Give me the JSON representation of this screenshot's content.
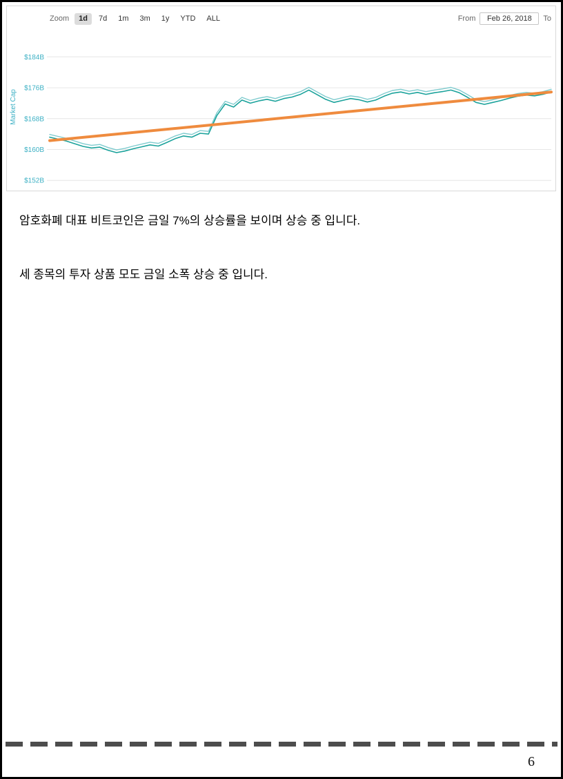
{
  "page": {
    "number": "6"
  },
  "chart": {
    "toolbar": {
      "zoom_label": "Zoom",
      "ranges": [
        {
          "label": "1d",
          "selected": true
        },
        {
          "label": "7d",
          "selected": false
        },
        {
          "label": "1m",
          "selected": false
        },
        {
          "label": "3m",
          "selected": false
        },
        {
          "label": "1y",
          "selected": false
        },
        {
          "label": "YTD",
          "selected": false
        },
        {
          "label": "ALL",
          "selected": false
        }
      ],
      "from_label": "From",
      "from_value": "Feb 26, 2018",
      "to_label": "To"
    },
    "y_axis_title": "Market Cap"
  },
  "chart_data": {
    "type": "line",
    "title": "",
    "xlabel": "",
    "ylabel": "Market Cap",
    "unit": "USD billions",
    "range_selected": "1d",
    "from_date": "Feb 26, 2018",
    "ylim": [
      151.5,
      190.5
    ],
    "yticks": [
      {
        "value": 152,
        "label": "$152B"
      },
      {
        "value": 160,
        "label": "$160B"
      },
      {
        "value": 168,
        "label": "$168B"
      },
      {
        "value": 176,
        "label": "$176B"
      },
      {
        "value": 184,
        "label": "$184B"
      }
    ],
    "grid": true,
    "legend": "none",
    "colors": {
      "axis_label": "#3cb0c4",
      "grid": "#e6e6e6"
    },
    "series": [
      {
        "name": "Market Cap",
        "color": "#1aa29b",
        "width": 1.6,
        "values": [
          163.2,
          162.7,
          162.2,
          161.5,
          160.8,
          160.4,
          160.6,
          159.8,
          159.2,
          159.6,
          160.2,
          160.7,
          161.2,
          160.9,
          161.8,
          162.8,
          163.5,
          163.2,
          164.2,
          164.0,
          168.8,
          171.8,
          171.0,
          172.8,
          172.0,
          172.6,
          173.0,
          172.5,
          173.2,
          173.6,
          174.3,
          175.4,
          174.2,
          173.0,
          172.2,
          172.7,
          173.2,
          172.9,
          172.3,
          172.8,
          173.8,
          174.6,
          174.9,
          174.4,
          174.8,
          174.3,
          174.7,
          175.0,
          175.4,
          174.7,
          173.5,
          172.2,
          171.7,
          172.2,
          172.7,
          173.3,
          173.8,
          174.1,
          173.9,
          174.3,
          174.9
        ]
      },
      {
        "name": "Market Cap (upper band)",
        "color": "#7ecbce",
        "width": 1.4,
        "derived_from": "Market Cap",
        "visual_offset_b": 0.7
      },
      {
        "name": "Trend line",
        "color": "#ef8b3e",
        "width": 4,
        "endpoints_only": true,
        "values": [
          162.3,
          174.9
        ]
      }
    ]
  },
  "body": {
    "paragraph1": "암호화폐 대표 비트코인은 금일 7%의 상승률을 보이며 상승 중 입니다.",
    "paragraph2": "세 종목의 투자 상품 모도 금일 소폭 상승 중 입니다."
  }
}
